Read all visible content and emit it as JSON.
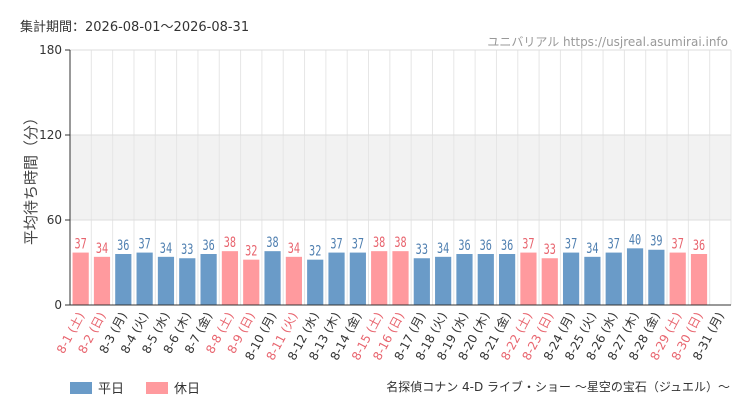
{
  "header": {
    "period": "集計期間：2026-08-01～2026-08-31",
    "site": "ユニバリアル  https://usjreal.asumirai.info"
  },
  "footer": {
    "attraction": "名探偵コナン 4-D ライブ・ショー ～星空の宝石（ジュエル）～"
  },
  "colors": {
    "weekday": "#6a9bc8",
    "holiday": "#ff9a9e",
    "weekday_text": "#333333",
    "holiday_text": "#e8646e"
  },
  "chart_data": {
    "type": "bar",
    "ylabel": "平均待ち時間（分）",
    "ylim": [
      0,
      180
    ],
    "yticks": [
      0,
      60,
      120,
      180
    ],
    "legend": [
      {
        "name": "平日",
        "key": "weekday"
      },
      {
        "name": "休日",
        "key": "holiday"
      }
    ],
    "legend_position": "bottom-left",
    "categories": [
      "8-1 (土)",
      "8-2 (日)",
      "8-3 (月)",
      "8-4 (火)",
      "8-5 (水)",
      "8-6 (木)",
      "8-7 (金)",
      "8-8 (土)",
      "8-9 (日)",
      "8-10 (月)",
      "8-11 (火)",
      "8-12 (水)",
      "8-13 (木)",
      "8-14 (金)",
      "8-15 (土)",
      "8-16 (日)",
      "8-17 (月)",
      "8-18 (火)",
      "8-19 (水)",
      "8-20 (木)",
      "8-21 (金)",
      "8-22 (土)",
      "8-23 (日)",
      "8-24 (月)",
      "8-25 (火)",
      "8-26 (水)",
      "8-27 (木)",
      "8-28 (金)",
      "8-29 (土)",
      "8-30 (日)",
      "8-31 (月)"
    ],
    "values": [
      37,
      34,
      36,
      37,
      34,
      33,
      36,
      38,
      32,
      38,
      34,
      32,
      37,
      37,
      38,
      38,
      33,
      34,
      36,
      36,
      36,
      37,
      33,
      37,
      34,
      37,
      40,
      39,
      37,
      36,
      null
    ],
    "kinds": [
      "holiday",
      "holiday",
      "weekday",
      "weekday",
      "weekday",
      "weekday",
      "weekday",
      "holiday",
      "holiday",
      "weekday",
      "holiday",
      "weekday",
      "weekday",
      "weekday",
      "holiday",
      "holiday",
      "weekday",
      "weekday",
      "weekday",
      "weekday",
      "weekday",
      "holiday",
      "holiday",
      "weekday",
      "weekday",
      "weekday",
      "weekday",
      "weekday",
      "holiday",
      "holiday",
      "weekday"
    ]
  }
}
